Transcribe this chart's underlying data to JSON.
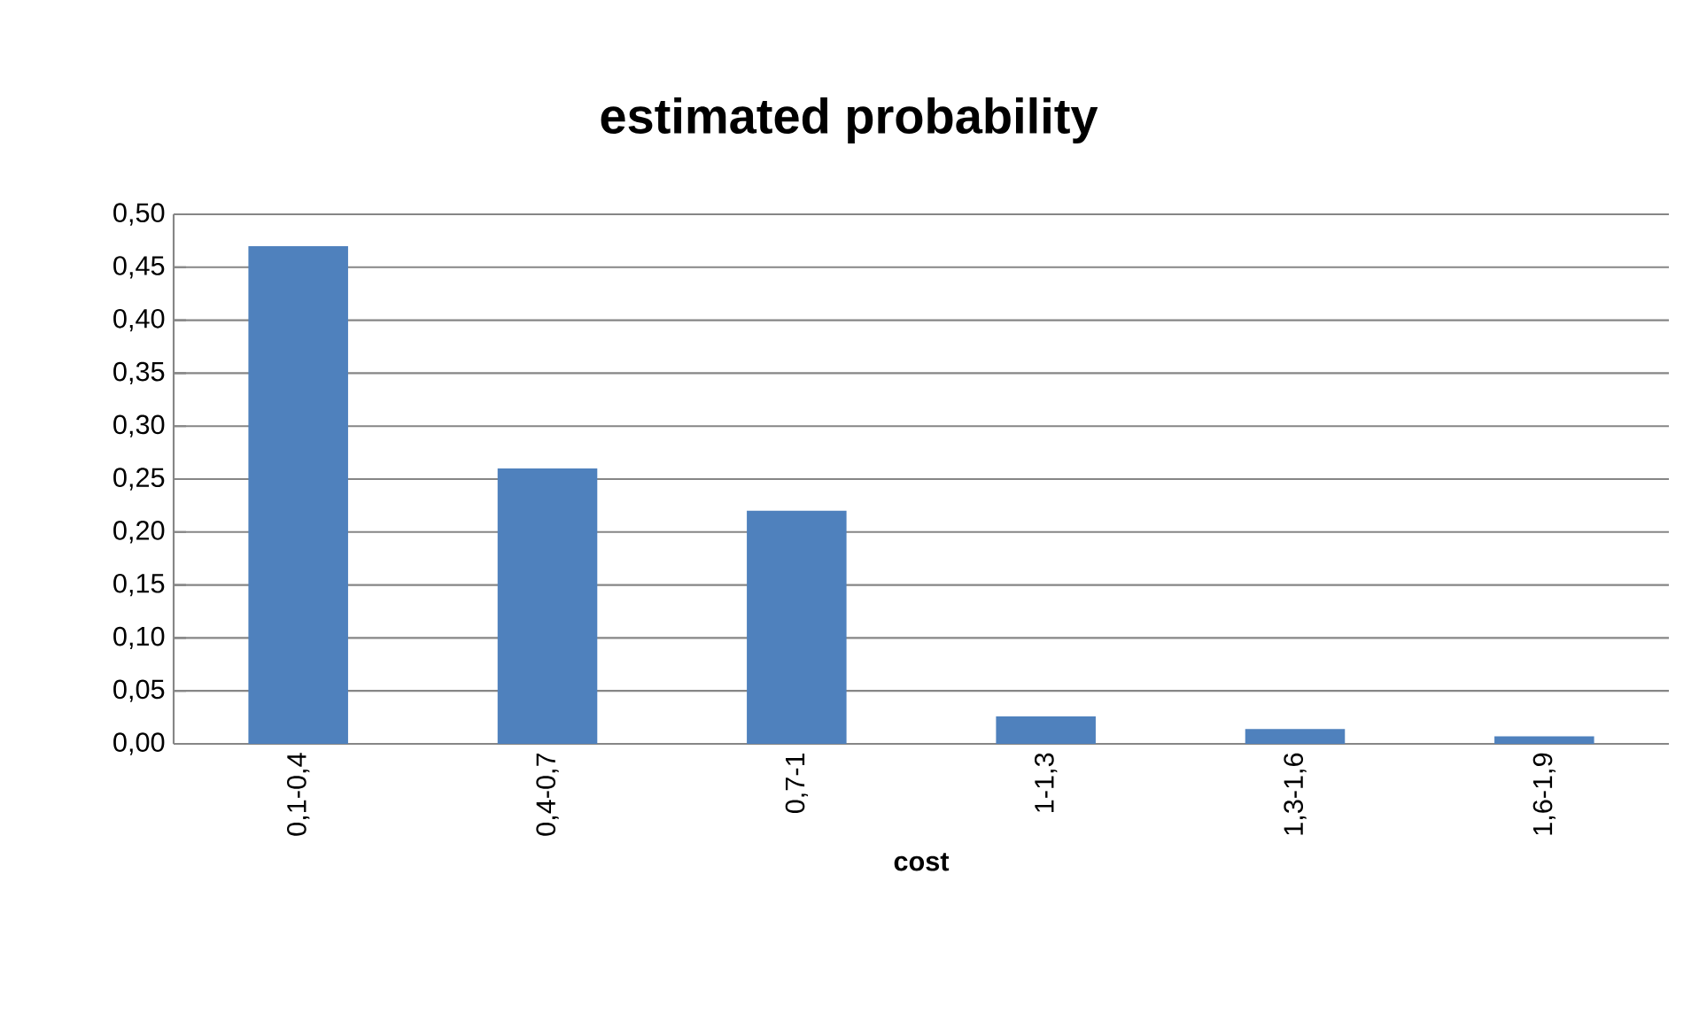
{
  "chart_data": {
    "type": "bar",
    "title": "estimated probability",
    "xlabel": "cost",
    "categories": [
      "0,1-0,4",
      "0,4-0,7",
      "0,7-1",
      "1-1,3",
      "1,3-1,6",
      "1,6-1,9"
    ],
    "values": [
      0.47,
      0.26,
      0.22,
      0.026,
      0.014,
      0.007
    ],
    "color": "#4f81bd",
    "ylim": [
      0,
      0.5
    ],
    "yticks": [
      {
        "value": 0,
        "label": "0,00"
      },
      {
        "value": 0.05,
        "label": "0,05"
      },
      {
        "value": 0.1,
        "label": "0,10"
      },
      {
        "value": 0.15,
        "label": "0,15"
      },
      {
        "value": 0.2,
        "label": "0,20"
      },
      {
        "value": 0.25,
        "label": "0,25"
      },
      {
        "value": 0.3,
        "label": "0,30"
      },
      {
        "value": 0.35,
        "label": "0,35"
      },
      {
        "value": 0.4,
        "label": "0,40"
      },
      {
        "value": 0.45,
        "label": "0,45"
      },
      {
        "value": 0.5,
        "label": "0,50"
      }
    ],
    "grid": "y"
  }
}
